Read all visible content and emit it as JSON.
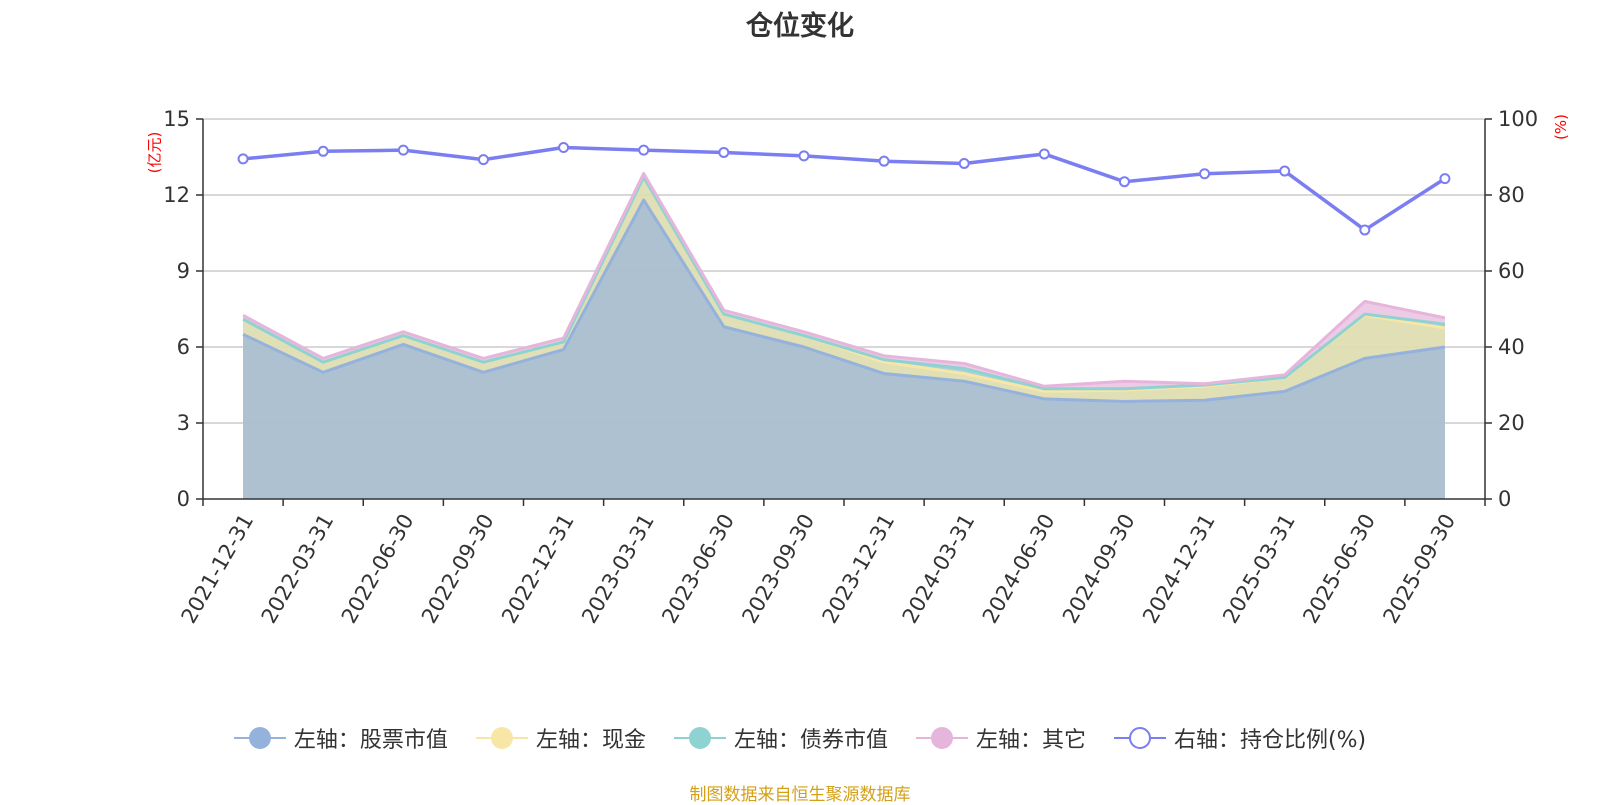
{
  "title": "仓位变化",
  "source_note": "制图数据来自恒生聚源数据库",
  "units": {
    "left": "(亿元)",
    "right": "(%)"
  },
  "colors": {
    "stock": "#95b2dd",
    "cash": "#f7e6a6",
    "bond": "#8fd2d2",
    "other": "#e6b5db",
    "ratio": "#7b7ef0",
    "unit_text": "#ff0000",
    "source_text": "#d4a017"
  },
  "legend": [
    {
      "key": "stock",
      "label": "左轴：股票市值",
      "icon": "filled-circle"
    },
    {
      "key": "cash",
      "label": "左轴：现金",
      "icon": "filled-circle"
    },
    {
      "key": "bond",
      "label": "左轴：债券市值",
      "icon": "filled-circle"
    },
    {
      "key": "other",
      "label": "左轴：其它",
      "icon": "filled-circle"
    },
    {
      "key": "ratio",
      "label": "右轴：持仓比例(%)",
      "icon": "hollow-circle"
    }
  ],
  "chart_data": {
    "type": "area",
    "title": "仓位变化",
    "categories": [
      "2021-12-31",
      "2022-03-31",
      "2022-06-30",
      "2022-09-30",
      "2022-12-31",
      "2023-03-31",
      "2023-06-30",
      "2023-09-30",
      "2023-12-31",
      "2024-03-31",
      "2024-06-30",
      "2024-09-30",
      "2024-12-31",
      "2025-03-31",
      "2025-06-30",
      "2025-09-30"
    ],
    "left_axis": {
      "unit": "(亿元)",
      "ylim": [
        0,
        15
      ],
      "ticks": [
        0,
        3,
        6,
        9,
        12,
        15
      ]
    },
    "right_axis": {
      "unit": "(%)",
      "ylim": [
        0,
        100
      ],
      "ticks": [
        0,
        20,
        40,
        60,
        80,
        100
      ]
    },
    "stacked": true,
    "series": [
      {
        "name": "左轴：股票市值",
        "axis": "left",
        "key": "stock",
        "values": [
          6.5,
          5.0,
          6.1,
          5.0,
          5.9,
          11.8,
          6.8,
          6.0,
          4.95,
          4.65,
          3.95,
          3.85,
          3.9,
          4.25,
          5.55,
          6.0
        ]
      },
      {
        "name": "左轴：现金",
        "axis": "left",
        "key": "cash",
        "values": [
          0.6,
          0.4,
          0.35,
          0.4,
          0.3,
          0.9,
          0.5,
          0.45,
          0.45,
          0.3,
          0.3,
          0.45,
          0.55,
          0.55,
          1.7,
          0.75
        ]
      },
      {
        "name": "左轴：债券市值",
        "axis": "left",
        "key": "bond",
        "values": [
          0.0,
          0.0,
          0.0,
          0.0,
          0.0,
          0.0,
          0.0,
          0.0,
          0.1,
          0.2,
          0.1,
          0.05,
          0.05,
          0.0,
          0.05,
          0.15
        ]
      },
      {
        "name": "左轴：其它",
        "axis": "left",
        "key": "other",
        "values": [
          0.15,
          0.15,
          0.15,
          0.15,
          0.15,
          0.15,
          0.15,
          0.15,
          0.15,
          0.2,
          0.1,
          0.3,
          0.05,
          0.1,
          0.5,
          0.25
        ]
      },
      {
        "name": "右轴：持仓比例(%)",
        "axis": "right",
        "key": "ratio",
        "type": "line",
        "values": [
          89.5,
          91.5,
          91.8,
          89.3,
          92.5,
          91.8,
          91.2,
          90.3,
          88.9,
          88.3,
          90.8,
          83.5,
          85.6,
          86.3,
          70.8,
          84.3
        ]
      }
    ],
    "grid": true,
    "legend_position": "bottom"
  }
}
